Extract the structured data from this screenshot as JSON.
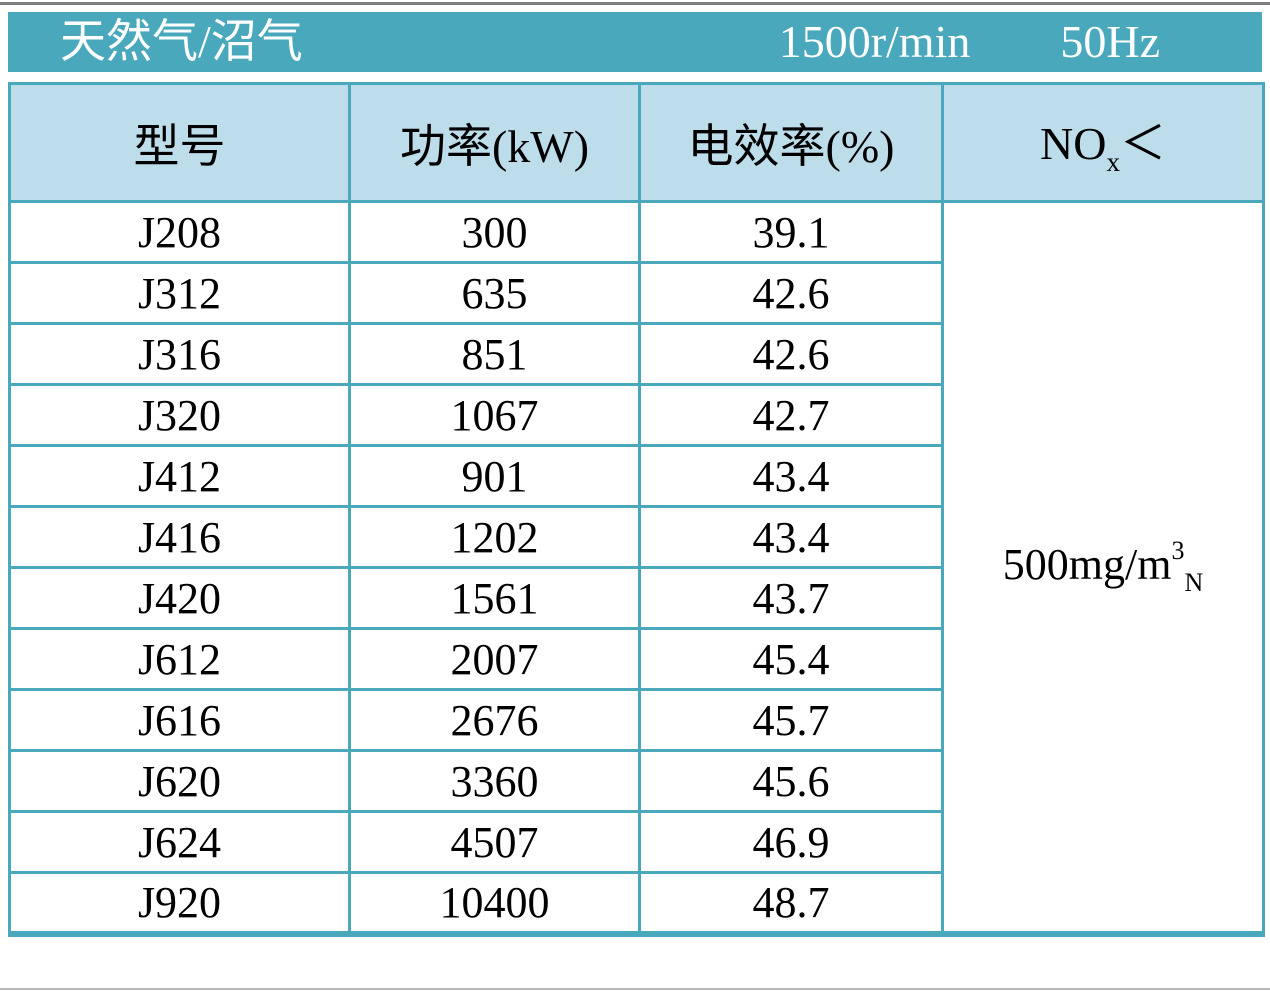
{
  "page": {
    "title_bar": {
      "fuel_label": "天然气/沼气",
      "speed_label": "1500r/min",
      "frequency_label": "50Hz"
    },
    "table": {
      "headers": {
        "model": "型号",
        "power": "功率(kW)",
        "efficiency": "电效率(%)",
        "nox_base": "NO",
        "nox_sub": "x",
        "nox_symbol": "＜"
      },
      "rows": [
        {
          "model": "J208",
          "power": "300",
          "efficiency": "39.1"
        },
        {
          "model": "J312",
          "power": "635",
          "efficiency": "42.6"
        },
        {
          "model": "J316",
          "power": "851",
          "efficiency": "42.6"
        },
        {
          "model": "J320",
          "power": "1067",
          "efficiency": "42.7"
        },
        {
          "model": "J412",
          "power": "901",
          "efficiency": "43.4"
        },
        {
          "model": "J416",
          "power": "1202",
          "efficiency": "43.4"
        },
        {
          "model": "J420",
          "power": "1561",
          "efficiency": "43.7"
        },
        {
          "model": "J612",
          "power": "2007",
          "efficiency": "45.4"
        },
        {
          "model": "J616",
          "power": "2676",
          "efficiency": "45.7"
        },
        {
          "model": "J620",
          "power": "3360",
          "efficiency": "45.6"
        },
        {
          "model": "J624",
          "power": "4507",
          "efficiency": "46.9"
        },
        {
          "model": "J920",
          "power": "10400",
          "efficiency": "48.7"
        }
      ],
      "nox_value": {
        "base": "500mg/m",
        "sup": "3",
        "sub": "N"
      }
    },
    "colors": {
      "accent_teal": "#4AA8BD",
      "header_fill": "#BCDDE9",
      "text_on_teal": "#FFFFFF",
      "text": "#000000"
    }
  },
  "chart_data": {
    "type": "table",
    "title": "天然气/沼气 1500r/min 50Hz",
    "columns": [
      "型号",
      "功率(kW)",
      "电效率(%)",
      "NOx＜"
    ],
    "models": [
      "J208",
      "J312",
      "J316",
      "J320",
      "J412",
      "J416",
      "J420",
      "J612",
      "J616",
      "J620",
      "J624",
      "J920"
    ],
    "power_kw": [
      300,
      635,
      851,
      1067,
      901,
      1202,
      1561,
      2007,
      2676,
      3360,
      4507,
      10400
    ],
    "efficiency_pct": [
      39.1,
      42.6,
      42.6,
      42.7,
      43.4,
      43.4,
      43.7,
      45.4,
      45.7,
      45.6,
      46.9,
      48.7
    ],
    "nox_limit": "500mg/m³N",
    "nox_limit_note": "single merged cell spanning all 12 rows"
  }
}
